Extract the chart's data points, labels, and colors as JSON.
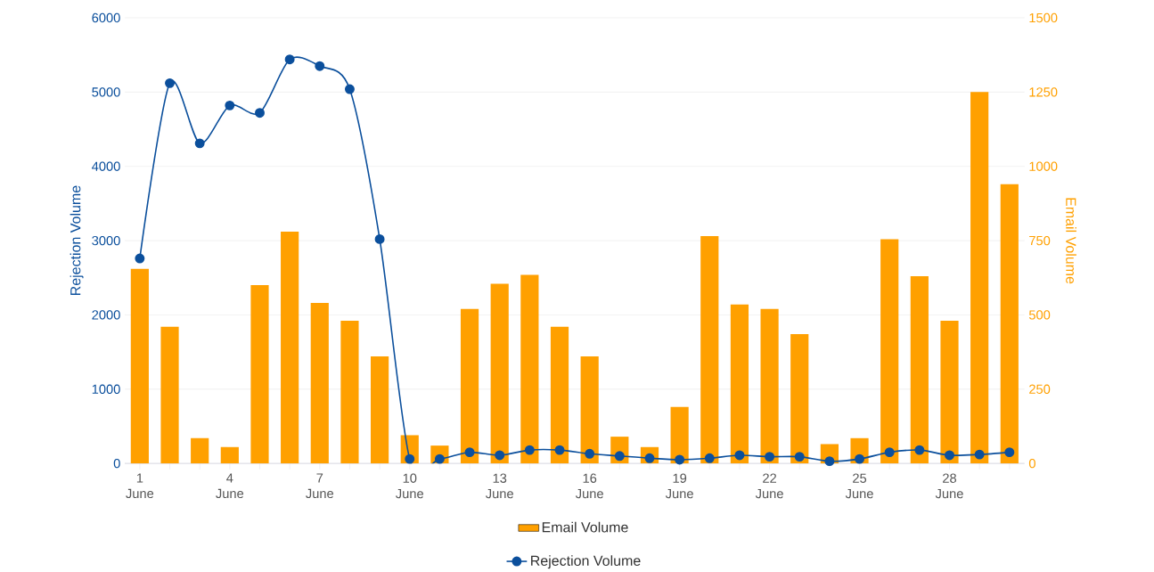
{
  "chart_data": {
    "type": "bar",
    "categories": [
      "1 June",
      null,
      null,
      "4 June",
      null,
      null,
      "7 June",
      null,
      null,
      "10 June",
      null,
      null,
      "13 June",
      null,
      null,
      "16 June",
      null,
      null,
      "19 June",
      null,
      null,
      "22 June",
      null,
      null,
      "25 June",
      null,
      null,
      "28 June",
      null,
      null
    ],
    "ylabel": "Rejection Volume",
    "y2label": "Email Volume",
    "ylim": [
      0,
      6000
    ],
    "yticks": [
      0,
      1000,
      2000,
      3000,
      4000,
      5000,
      6000
    ],
    "y2lim": [
      0,
      1500
    ],
    "y2ticks": [
      0,
      250,
      500,
      750,
      1000,
      1250,
      1500
    ],
    "grid": "y",
    "legend": "bottom",
    "marker": "circle",
    "series": [
      {
        "name": "Email Volume",
        "axis": "y2",
        "color": "#ffa000",
        "values": [
          655,
          460,
          85,
          55,
          600,
          780,
          540,
          480,
          360,
          95,
          60,
          520,
          605,
          635,
          460,
          360,
          90,
          55,
          190,
          765,
          535,
          520,
          435,
          65,
          85,
          755,
          630,
          480,
          1250,
          940
        ]
      },
      {
        "name": "Rejection Volume",
        "type": "line",
        "axis": "y",
        "color": "#0b4f9c",
        "values": [
          2760,
          5120,
          4310,
          4820,
          4720,
          5440,
          5350,
          5040,
          3020,
          60,
          60,
          150,
          110,
          180,
          180,
          130,
          100,
          70,
          50,
          70,
          110,
          90,
          90,
          30,
          60,
          150,
          180,
          110,
          120,
          150
        ]
      }
    ]
  }
}
